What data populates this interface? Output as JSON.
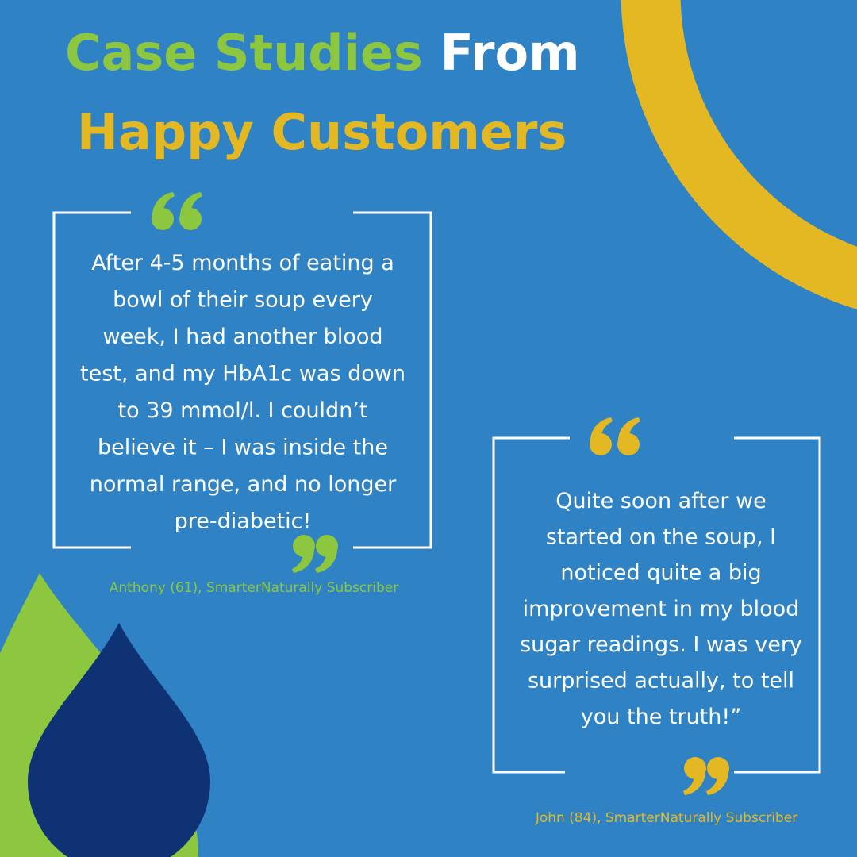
{
  "header": {
    "title_part_1": "Case Studies",
    "title_part_2": "From",
    "title_line_2": "Happy Customers"
  },
  "testimonials": [
    {
      "lines": [
        "After 4-5 months of eating a",
        "bowl of their soup every",
        "week, I had another blood",
        "test, and my HbA1c was down",
        "to 39 mmol/l. I couldn’t",
        "believe it – I was inside the",
        "normal range, and no longer",
        "pre-diabetic!"
      ],
      "attribution": "Anthony (61), SmarterNaturally Subscriber"
    },
    {
      "lines": [
        "Quite soon after we",
        "started on the soup, I",
        "noticed quite a big",
        "improvement in my blood",
        "sugar readings. I was very",
        "surprised actually, to tell",
        "you the truth!”"
      ],
      "attribution": "John (84), SmarterNaturally Subscriber"
    }
  ]
}
